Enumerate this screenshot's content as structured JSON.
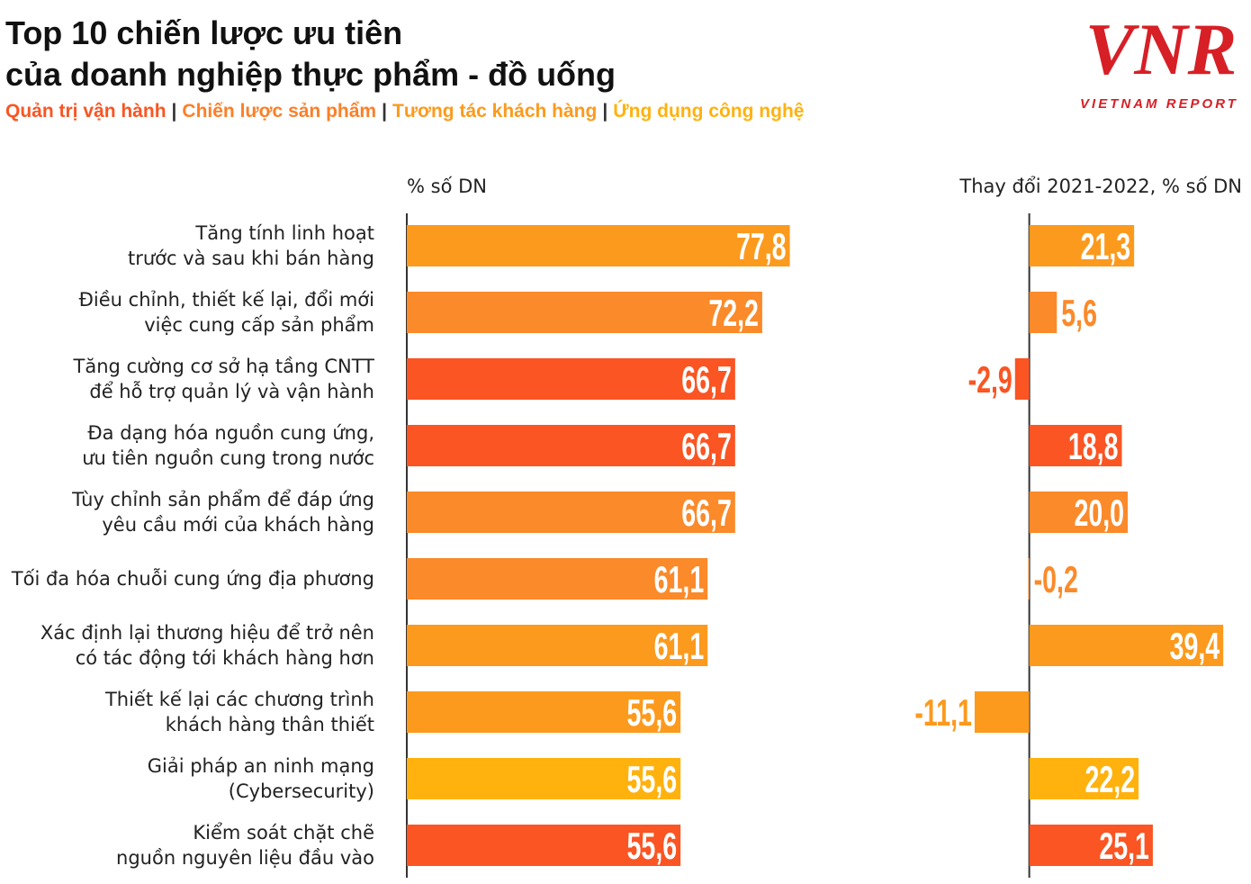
{
  "title": [
    "Top 10 chiến lược ưu tiên",
    "của doanh nghiệp thực phẩm - đồ uống"
  ],
  "legend": [
    {
      "name": "Quản trị vận hành",
      "color": "#fa5523"
    },
    {
      "name": "Chiến lược sản phẩm",
      "color": "#fb7f28"
    },
    {
      "name": "Tương tác khách hàng",
      "color": "#fc9a1d"
    },
    {
      "name": "Ứng dụng công nghệ",
      "color": "#ffb20e"
    }
  ],
  "legend_separator": "|",
  "logo": {
    "text": "VNR",
    "subtitle": "VIETNAM REPORT"
  },
  "chart_data": [
    {
      "type": "hbar",
      "x_label": "% số DN",
      "categories": [
        "Tăng tính linh hoạt\ntrước và sau khi bán hàng",
        "Điều chỉnh, thiết kế lại, đổi mới\nviệc cung cấp sản phẩm",
        "Tăng cường cơ sở hạ tầng CNTT\nđể hỗ trợ quản lý và vận hành",
        "Đa dạng hóa nguồn cung ứng,\nưu tiên nguồn cung trong nước",
        "Tùy chỉnh sản phẩm để đáp ứng\nyêu cầu mới của khách hàng",
        "Tối đa hóa chuỗi cung ứng địa phương",
        "Xác định lại thương hiệu để trở nên\ncó tác động tới khách hàng hơn",
        "Thiết kế lại các chương trình\nkhách hàng thân thiết",
        "Giải pháp an ninh mạng\n(Cybersecurity)",
        "Kiểm soát chặt chẽ\nnguồn nguyên liệu đầu vào"
      ],
      "values": [
        77.8,
        72.2,
        66.7,
        66.7,
        66.7,
        61.1,
        61.1,
        55.6,
        55.6,
        55.6
      ],
      "value_labels": [
        "77,8",
        "72,2",
        "66,7",
        "66,7",
        "66,7",
        "61,1",
        "61,1",
        "55,6",
        "55,6",
        "55,6"
      ],
      "colors": [
        "#fc9a1d",
        "#fb8a2a",
        "#fa5523",
        "#fa5523",
        "#fb8a2a",
        "#fb8a2a",
        "#fc9a1d",
        "#fc9a1d",
        "#ffb20e",
        "#fa5523"
      ],
      "xlim": [
        0,
        80
      ]
    },
    {
      "type": "hbar",
      "x_label": "Thay đổi 2021-2022, % số DN",
      "values": [
        21.3,
        5.6,
        -2.9,
        18.8,
        20.0,
        -0.2,
        39.4,
        -11.1,
        22.2,
        25.1
      ],
      "value_labels": [
        "21,3",
        "5,6",
        "-2,9",
        "18,8",
        "20,0",
        "-0,2",
        "39,4",
        "-11,1",
        "22,2",
        "25,1"
      ],
      "colors": [
        "#fc9a1d",
        "#fb8a2a",
        "#fa5523",
        "#fa5523",
        "#fb8a2a",
        "#fb8a2a",
        "#fc9a1d",
        "#fc9a1d",
        "#ffb20e",
        "#fa5523"
      ],
      "xlim": [
        -12,
        40
      ]
    }
  ]
}
